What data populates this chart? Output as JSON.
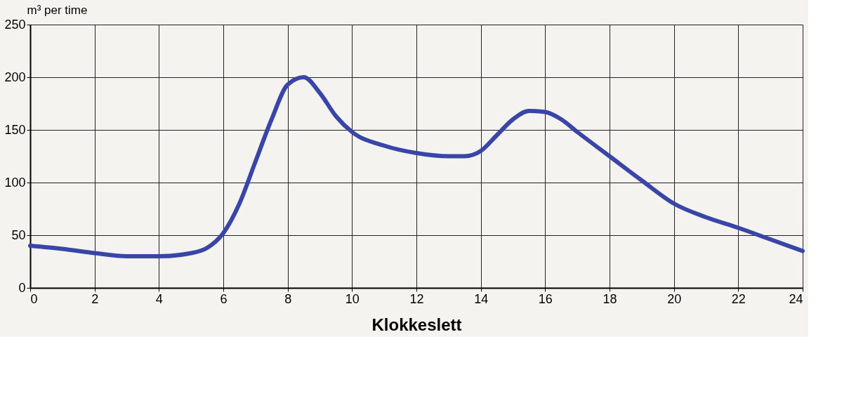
{
  "chart_data": {
    "type": "line",
    "xlabel": "Klokkeslett",
    "ylabel": "m³ per time",
    "xlim": [
      0,
      24
    ],
    "xticks": [
      0,
      2,
      4,
      6,
      8,
      10,
      12,
      14,
      16,
      18,
      20,
      22,
      24
    ],
    "ylim": [
      0,
      250
    ],
    "yticks": [
      0,
      50,
      100,
      150,
      200,
      250
    ],
    "grid": true,
    "marker": "none",
    "line_style": "solid",
    "series": [
      {
        "color": "#3a45a8",
        "x": [
          0,
          1,
          2,
          3,
          4,
          5,
          5.5,
          6,
          6.5,
          7,
          7.5,
          8,
          8.5,
          9,
          9.5,
          10,
          11,
          12,
          13,
          13.5,
          14,
          14.5,
          15,
          15.5,
          16,
          16.5,
          17,
          18,
          19,
          20,
          21,
          22,
          23,
          24
        ],
        "values": [
          40,
          37,
          33,
          30,
          30,
          33,
          38,
          52,
          80,
          120,
          160,
          193,
          200,
          185,
          163,
          148,
          135,
          128,
          125,
          125,
          130,
          145,
          160,
          168,
          167,
          160,
          148,
          125,
          102,
          80,
          67,
          57,
          46,
          35
        ]
      }
    ]
  }
}
